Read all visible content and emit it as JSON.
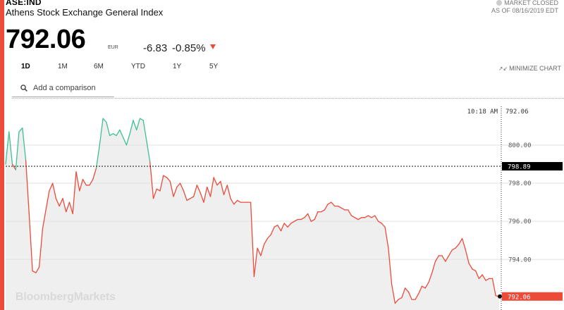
{
  "header": {
    "ticker": "ASE:IND",
    "name": "Athens Stock Exchange General Index",
    "market_status": "MARKET CLOSED",
    "as_of": "AS OF 08/16/2019 EDT",
    "price": "792.06",
    "currency": "EUR",
    "change": "-6.83",
    "change_pct": "-0.85%"
  },
  "tabs": [
    "1D",
    "1M",
    "6M",
    "YTD",
    "1Y",
    "5Y"
  ],
  "active_tab": "1D",
  "minimize_label": "MINIMIZE CHART",
  "comparison_placeholder": "Add a comparison",
  "watermark": "BloombergMarkets",
  "colors": {
    "accent": "#ec4b3a",
    "up": "#3fc08f",
    "down": "#ec4b3a",
    "fill": "#efefef",
    "price_badge": "#ec4b3a",
    "ref_badge": "#000000"
  },
  "icons": {
    "comparison": "search-icon",
    "change_direction": "down-triangle-icon",
    "minimize": "minimize-arrows-icon"
  },
  "chart_data": {
    "type": "area",
    "ylim": [
      791.35,
      802.4
    ],
    "y_ticks": [
      "800.00",
      "798.00",
      "796.00",
      "794.00"
    ],
    "previous_close": "798.89",
    "last_price": "792.06",
    "hover": {
      "time": "10:18 AM",
      "value": "792.06"
    },
    "grid": true,
    "series": [
      {
        "values": [
          799.0,
          800.7,
          799.0,
          798.7,
          800.7,
          800.9,
          799.2,
          796.4,
          793.4,
          793.3,
          793.6,
          795.6,
          796.6,
          797.6,
          798.0,
          797.2,
          796.8,
          797.2,
          796.5,
          797.0,
          796.4,
          798.6,
          797.6,
          798.2,
          797.9,
          797.9,
          798.2,
          798.8,
          800.0,
          801.4,
          801.2,
          800.5,
          800.6,
          800.5,
          800.8,
          800.4,
          800.0,
          800.6,
          801.3,
          800.8,
          801.4,
          801.3,
          800.2,
          799.1,
          797.2,
          797.7,
          797.6,
          798.4,
          798.3,
          798.1,
          797.3,
          797.8,
          798.0,
          797.6,
          797.1,
          797.2,
          797.3,
          797.9,
          797.5,
          797.0,
          797.8,
          797.3,
          798.3,
          797.9,
          798.1,
          797.4,
          797.9,
          797.2,
          796.9,
          797.1,
          797.0,
          797.0,
          797.0,
          797.0,
          793.1,
          794.6,
          794.2,
          794.8,
          795.1,
          795.3,
          795.7,
          795.8,
          795.5,
          795.9,
          795.7,
          795.9,
          796.0,
          796.1,
          796.1,
          796.2,
          796.4,
          796.0,
          796.1,
          796.5,
          796.5,
          796.6,
          796.9,
          797.0,
          796.8,
          796.8,
          796.7,
          796.6,
          796.6,
          796.3,
          796.2,
          796.1,
          796.2,
          796.2,
          796.3,
          796.2,
          796.3,
          796.0,
          795.9,
          795.7,
          794.6,
          792.7,
          791.7,
          791.9,
          792.0,
          792.5,
          792.3,
          791.9,
          791.9,
          792.2,
          792.6,
          792.5,
          792.8,
          793.3,
          793.9,
          794.2,
          794.2,
          793.9,
          794.2,
          794.5,
          794.6,
          794.8,
          795.1,
          794.5,
          793.8,
          793.5,
          793.4,
          793.0,
          793.2,
          792.9,
          793.0,
          793.0,
          792.1,
          792.06
        ]
      }
    ]
  }
}
